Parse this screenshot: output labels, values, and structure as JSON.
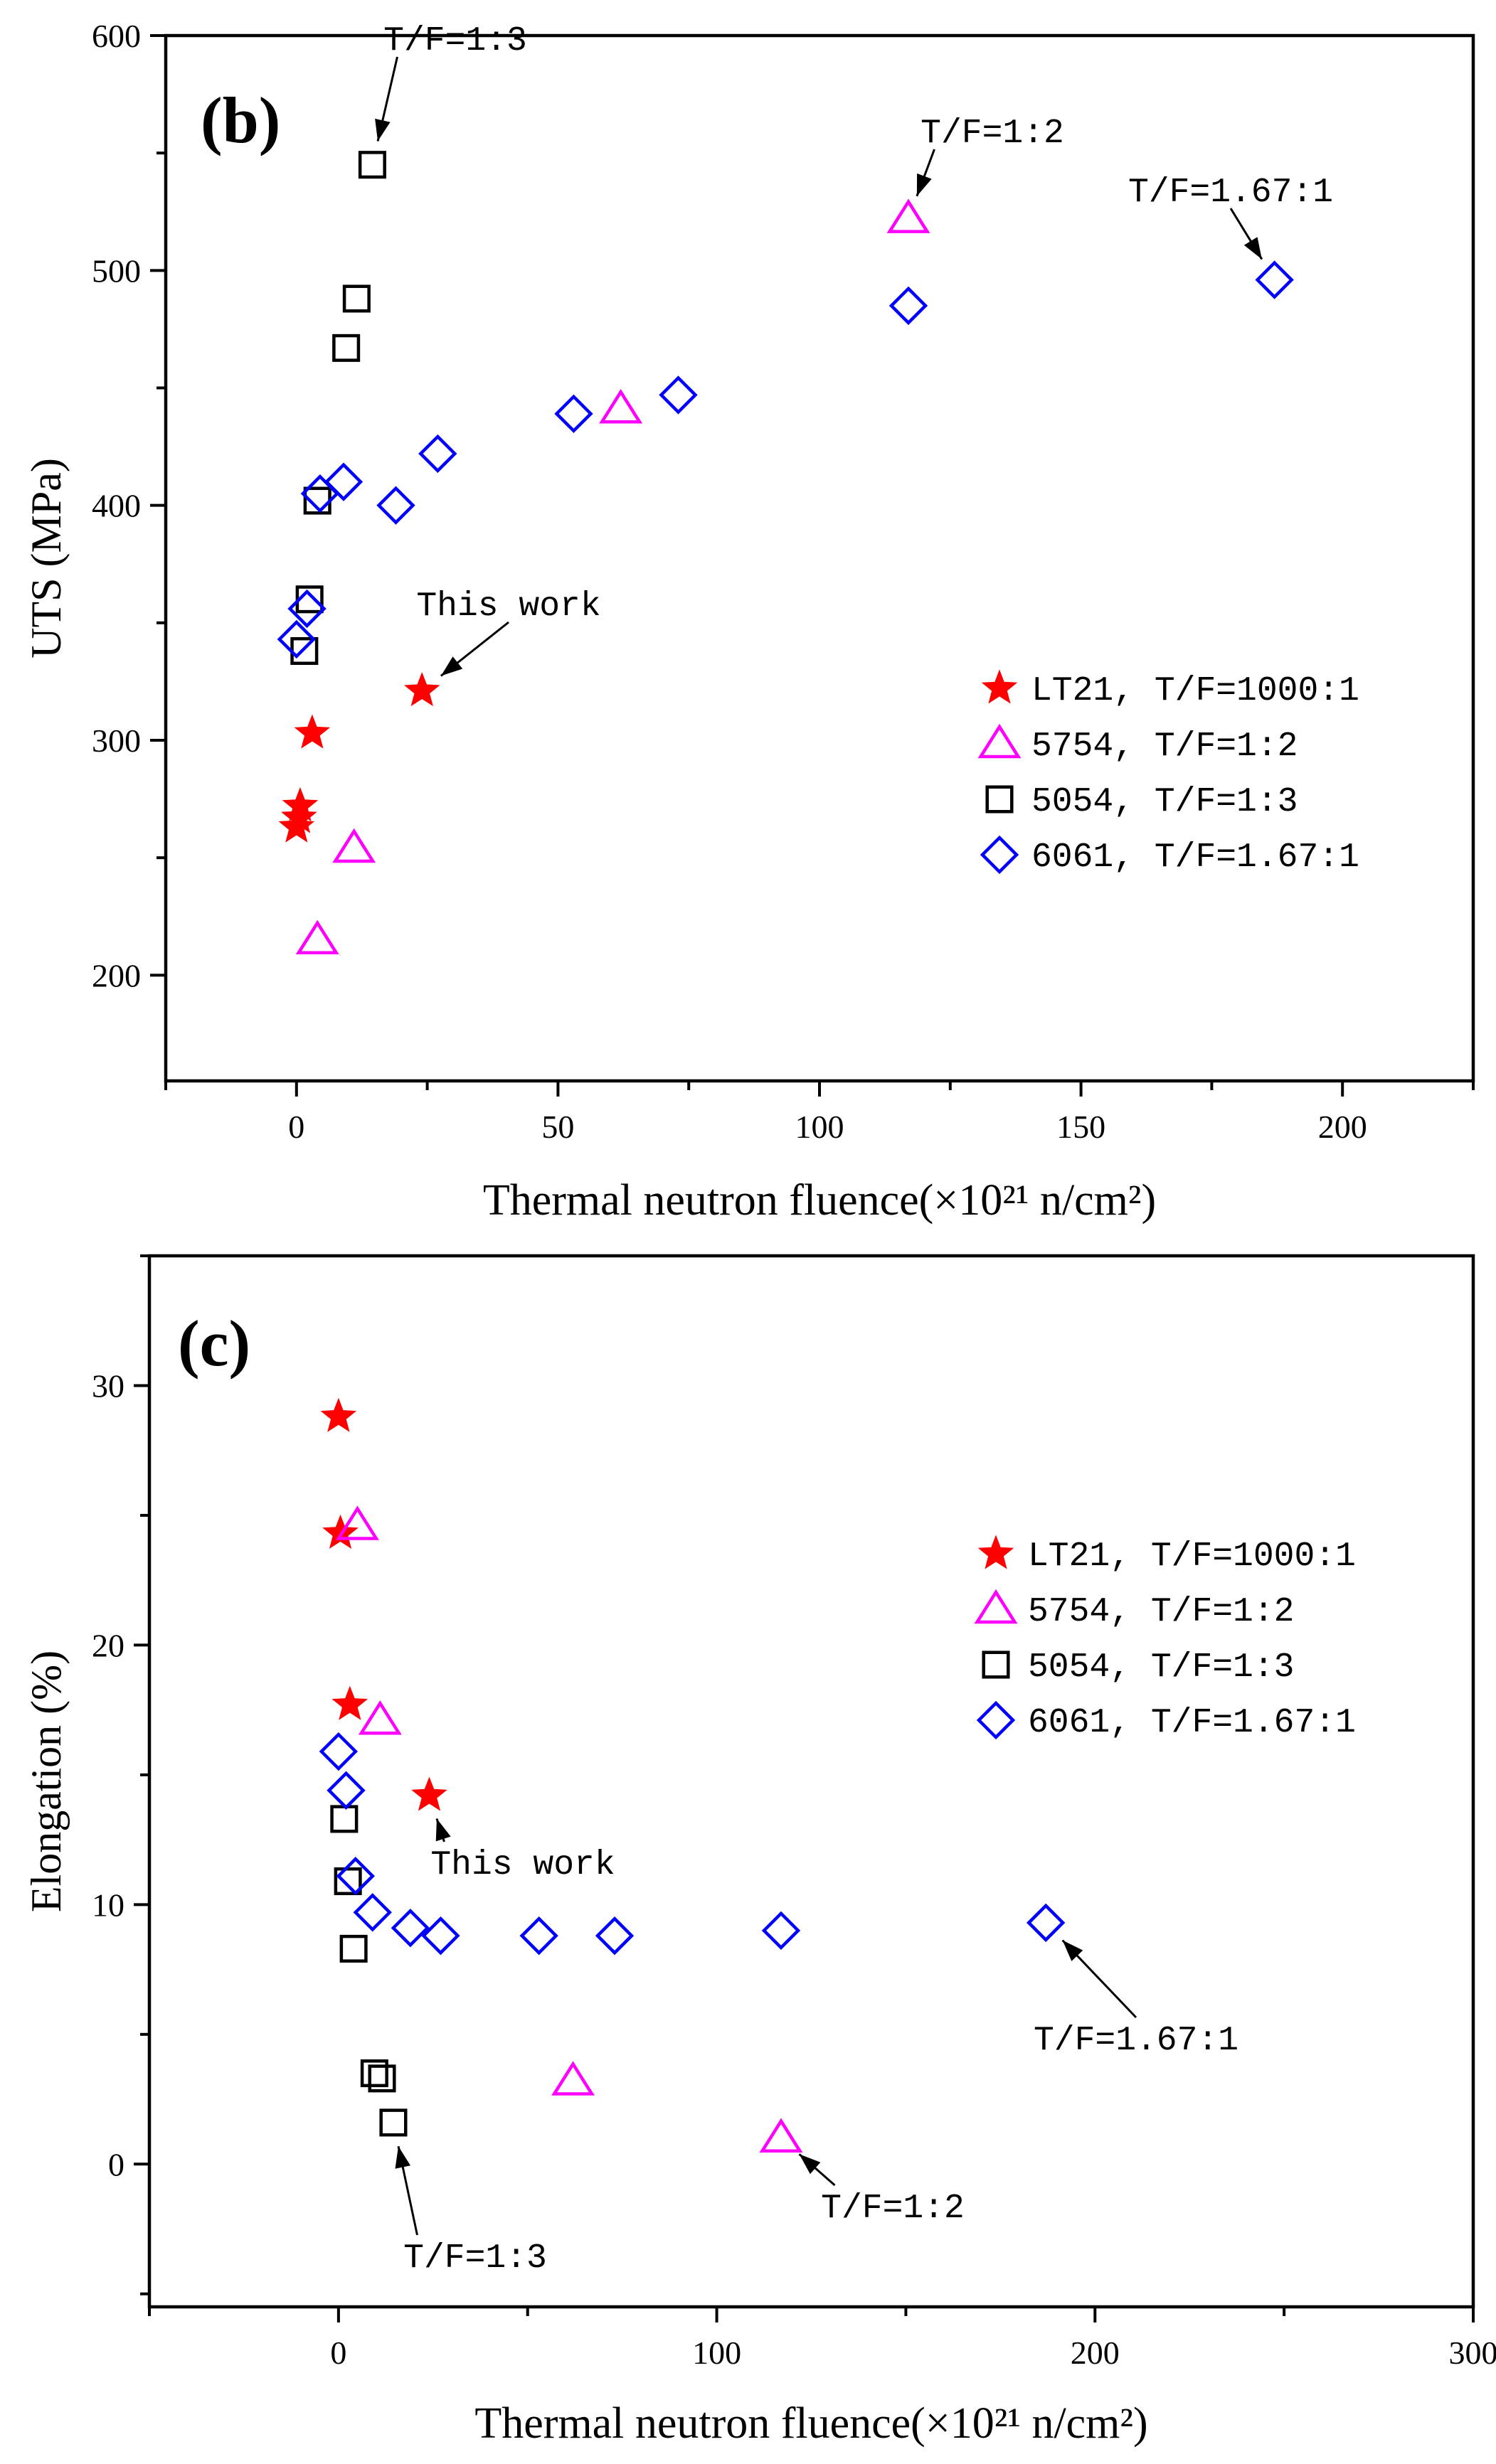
{
  "chart_data": [
    {
      "id": "b",
      "type": "scatter",
      "panel_label": "(b)",
      "xlabel": "Thermal neutron fluence(×10²¹ n/cm²)",
      "ylabel": "UTS (MPa)",
      "xlim": [
        -25,
        225
      ],
      "ylim": [
        155,
        600
      ],
      "xticks": [
        0,
        50,
        100,
        150,
        200
      ],
      "yticks": [
        200,
        300,
        400,
        500,
        600
      ],
      "legend_position": "right-middle",
      "series": [
        {
          "name": "LT21,  T/F=1000:1",
          "marker": "star",
          "color": "#ff0000",
          "points": [
            [
              0,
              263
            ],
            [
              0.5,
              267
            ],
            [
              0.7,
              272
            ],
            [
              3,
              303
            ],
            [
              24,
              321
            ]
          ]
        },
        {
          "name": "5754,  T/F=1:2",
          "marker": "triangle",
          "color": "#ff00ff",
          "points": [
            [
              4,
              215
            ],
            [
              11,
              254
            ],
            [
              62,
              441
            ],
            [
              117,
              522
            ]
          ]
        },
        {
          "name": "5054,  T/F=1:3",
          "marker": "square",
          "color": "#000000",
          "points": [
            [
              1.5,
              338
            ],
            [
              2.5,
              360
            ],
            [
              4,
              402
            ],
            [
              9.5,
              467
            ],
            [
              11.5,
              488
            ],
            [
              14.5,
              545
            ]
          ]
        },
        {
          "name": "6061,  T/F=1.67:1",
          "marker": "diamond",
          "color": "#0000ff",
          "points": [
            [
              0,
              343
            ],
            [
              2,
              356
            ],
            [
              4.5,
              405
            ],
            [
              9,
              410
            ],
            [
              19,
              400
            ],
            [
              27,
              422
            ],
            [
              53,
              439
            ],
            [
              73,
              447
            ],
            [
              117,
              485
            ],
            [
              187,
              496
            ]
          ]
        }
      ],
      "annotations": [
        {
          "text": "T/F=1:3",
          "points_to": [
            14.5,
            545
          ]
        },
        {
          "text": "T/F=1:2",
          "points_to": [
            117,
            522
          ]
        },
        {
          "text": "T/F=1.67:1",
          "points_to": [
            187,
            496
          ]
        },
        {
          "text": "This work",
          "points_to": [
            24,
            321
          ]
        }
      ]
    },
    {
      "id": "c",
      "type": "scatter",
      "panel_label": "(c)",
      "xlabel": "Thermal neutron fluence(×10²¹ n/cm²)",
      "ylabel": "Elongation (%)",
      "xlim": [
        -50,
        300
      ],
      "ylim": [
        -5.5,
        35
      ],
      "xticks": [
        0,
        100,
        200,
        300
      ],
      "yticks": [
        0,
        10,
        20,
        30
      ],
      "legend_position": "top-right",
      "series": [
        {
          "name": "LT21,  T/F=1000:1",
          "marker": "star",
          "color": "#ff0000",
          "points": [
            [
              0,
              28.8
            ],
            [
              0.5,
              24.3
            ],
            [
              3,
              17.7
            ],
            [
              24,
              14.2
            ]
          ]
        },
        {
          "name": "5754,  T/F=1:2",
          "marker": "triangle",
          "color": "#ff00ff",
          "points": [
            [
              5,
              24.6
            ],
            [
              11,
              17.1
            ],
            [
              62,
              3.2
            ],
            [
              117,
              1.0
            ]
          ]
        },
        {
          "name": "5054,  T/F=1:3",
          "marker": "square",
          "color": "#000000",
          "points": [
            [
              1.5,
              13.3
            ],
            [
              2.5,
              10.9
            ],
            [
              4,
              8.3
            ],
            [
              9.5,
              3.5
            ],
            [
              11.5,
              3.3
            ],
            [
              14.5,
              1.6
            ]
          ]
        },
        {
          "name": "6061,  T/F=1.67:1",
          "marker": "diamond",
          "color": "#0000ff",
          "points": [
            [
              0,
              15.9
            ],
            [
              2,
              14.4
            ],
            [
              4.5,
              11.1
            ],
            [
              9,
              9.7
            ],
            [
              19,
              9.1
            ],
            [
              27,
              8.8
            ],
            [
              53,
              8.8
            ],
            [
              73,
              8.8
            ],
            [
              117,
              9.0
            ],
            [
              187,
              9.3
            ]
          ]
        }
      ],
      "annotations": [
        {
          "text": "This work",
          "points_to": [
            24,
            14.2
          ]
        },
        {
          "text": "T/F=1.67:1",
          "points_to": [
            187,
            9.3
          ]
        },
        {
          "text": "T/F=1:3",
          "points_to": [
            14.5,
            1.6
          ]
        },
        {
          "text": "T/F=1:2",
          "points_to": [
            117,
            1.0
          ]
        }
      ]
    }
  ]
}
